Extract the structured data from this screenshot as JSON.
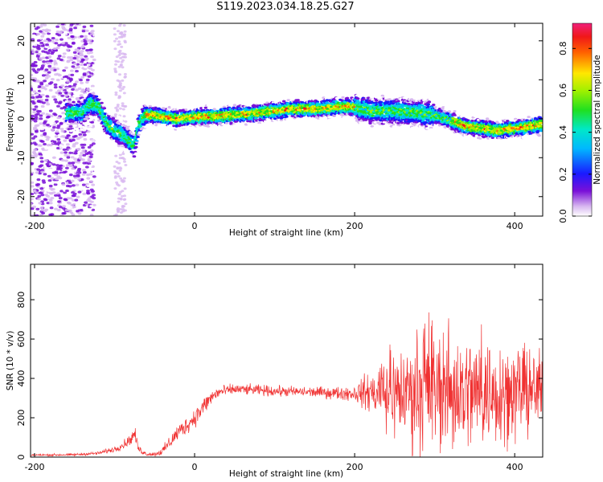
{
  "title": "S119.2023.034.18.25.G27",
  "chart_data": [
    {
      "type": "heatmap",
      "xlabel": "Height of straight line (km)",
      "ylabel": "Frequency (Hz)",
      "xlim": [
        -205,
        435
      ],
      "ylim": [
        -25,
        24.5
      ],
      "xticks": [
        -200,
        0,
        200,
        400
      ],
      "yticks": [
        -20,
        -10,
        0,
        10,
        20
      ],
      "colorbar": {
        "label": "Normalized spectral amplitude",
        "range": [
          0,
          0.92
        ],
        "ticks": [
          "0.0",
          "0.2",
          "0.4",
          "0.6",
          "0.8"
        ]
      },
      "ridge": {
        "x": [
          -160,
          -140,
          -130,
          -120,
          -110,
          -100,
          -90,
          -80,
          -75,
          -70,
          -65,
          -60,
          -50,
          -40,
          -20,
          0,
          20,
          50,
          80,
          100,
          120,
          150,
          180,
          200,
          220,
          250,
          280,
          300,
          320,
          340,
          360,
          380,
          400,
          420,
          433
        ],
        "y": [
          1.5,
          1.5,
          4,
          3,
          -1,
          -3,
          -4,
          -6,
          -7,
          -1.5,
          0,
          1,
          1,
          0.5,
          0,
          0.5,
          0.5,
          1,
          1.5,
          2,
          2.5,
          2.5,
          3,
          3,
          2,
          2,
          1.5,
          1,
          -0.5,
          -2,
          -2.5,
          -3,
          -2.5,
          -2,
          -1.5
        ]
      },
      "grid": false
    },
    {
      "type": "line",
      "xlabel": "Height of straight line (km)",
      "ylabel": "SNR (10 * v/v)",
      "xlim": [
        -205,
        435
      ],
      "ylim": [
        0,
        980
      ],
      "xticks": [
        -200,
        0,
        200,
        400
      ],
      "yticks": [
        0,
        200,
        400,
        600,
        800
      ],
      "color": "#f03232",
      "envelope": {
        "x": [
          -205,
          -150,
          -120,
          -100,
          -90,
          -80,
          -75,
          -70,
          -60,
          -50,
          -40,
          -30,
          -20,
          -10,
          0,
          10,
          20,
          30,
          50,
          80,
          100,
          150,
          180,
          200,
          220,
          240,
          260,
          280,
          300,
          320,
          340,
          360,
          380,
          400,
          420,
          435
        ],
        "mean": [
          10,
          12,
          20,
          40,
          60,
          90,
          120,
          40,
          15,
          15,
          30,
          80,
          130,
          160,
          200,
          250,
          300,
          330,
          345,
          340,
          335,
          330,
          325,
          325,
          330,
          330,
          330,
          335,
          340,
          335,
          330,
          330,
          335,
          335,
          335,
          335
        ],
        "amp": [
          5,
          6,
          8,
          15,
          20,
          25,
          35,
          20,
          8,
          10,
          20,
          35,
          40,
          40,
          45,
          45,
          40,
          30,
          25,
          25,
          25,
          25,
          30,
          40,
          100,
          190,
          240,
          270,
          300,
          300,
          290,
          270,
          250,
          230,
          200,
          180
        ]
      },
      "grid": false
    }
  ]
}
